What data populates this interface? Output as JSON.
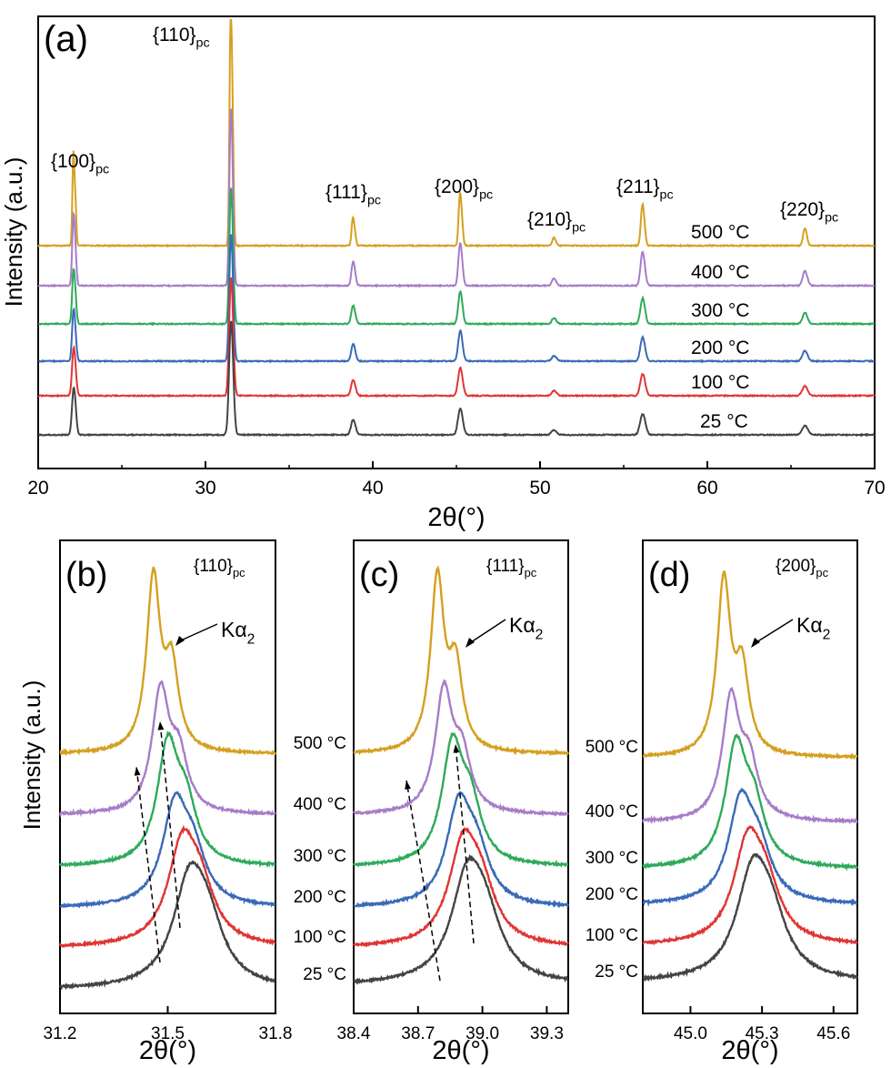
{
  "colors": {
    "500": "#d4a020",
    "400": "#a77cc8",
    "300": "#2faa5a",
    "200": "#3a6ab8",
    "100": "#e03535",
    "25": "#444444"
  },
  "chart_data": [
    {
      "panel": "a",
      "type": "line",
      "panel_label": "(a)",
      "xlabel": "2θ(°)",
      "ylabel": "Intensity (a.u.)",
      "xlim": [
        20,
        70
      ],
      "xticks": [
        20,
        30,
        40,
        50,
        60,
        70
      ],
      "series": [
        {
          "name": "500 °C",
          "key": "500"
        },
        {
          "name": "400 °C",
          "key": "400"
        },
        {
          "name": "300 °C",
          "key": "300"
        },
        {
          "name": "200 °C",
          "key": "200"
        },
        {
          "name": "100 °C",
          "key": "100"
        },
        {
          "name": "25 °C",
          "key": "25"
        }
      ],
      "peaks": [
        {
          "hkl": "{100}",
          "sub": "pc",
          "x": 22.1,
          "height": 0.4
        },
        {
          "hkl": "{110}",
          "sub": "pc",
          "x": 31.5,
          "height": 1.0
        },
        {
          "hkl": "{111}",
          "sub": "pc",
          "x": 38.8,
          "height": 0.11
        },
        {
          "hkl": "{200}",
          "sub": "pc",
          "x": 45.2,
          "height": 0.2
        },
        {
          "hkl": "{210}",
          "sub": "pc",
          "x": 50.8,
          "height": 0.03
        },
        {
          "hkl": "{211}",
          "sub": "pc",
          "x": 56.1,
          "height": 0.15
        },
        {
          "hkl": "{220}",
          "sub": "pc",
          "x": 65.8,
          "height": 0.06
        }
      ]
    },
    {
      "panel": "b",
      "type": "line",
      "panel_label": "(b)",
      "reflection": "{110}",
      "reflection_sub": "pc",
      "annotation": "Kα",
      "annotation_sub": "2",
      "xlabel": "2θ(°)",
      "ylabel": "Intensity (a.u.)",
      "xlim": [
        31.2,
        31.8
      ],
      "xticks": [
        31.2,
        31.5,
        31.8
      ],
      "xtick_labels": [
        "31.2",
        "31.5",
        "31.8"
      ],
      "peak_ka1": {
        "500": 31.46,
        "400": 31.48,
        "300": 31.5,
        "200": 31.52,
        "100": 31.54,
        "25": 31.56
      },
      "series": [
        {
          "name": "500 °C",
          "key": "500"
        },
        {
          "name": "400 °C",
          "key": "400"
        },
        {
          "name": "300 °C",
          "key": "300"
        },
        {
          "name": "200 °C",
          "key": "200"
        },
        {
          "name": "100 °C",
          "key": "100"
        },
        {
          "name": "25 °C",
          "key": "25"
        }
      ]
    },
    {
      "panel": "c",
      "type": "line",
      "panel_label": "(c)",
      "reflection": "{111}",
      "reflection_sub": "pc",
      "annotation": "Kα",
      "annotation_sub": "2",
      "xlabel": "2θ(°)",
      "xlim": [
        38.4,
        39.4
      ],
      "xticks": [
        38.4,
        38.7,
        39.0,
        39.3
      ],
      "xtick_labels": [
        "38.4",
        "38.7",
        "39.0",
        "39.3"
      ],
      "peak_ka1": {
        "500": 38.79,
        "400": 38.82,
        "300": 38.86,
        "200": 38.89,
        "100": 38.91,
        "25": 38.93
      },
      "series": [
        {
          "name": "500 °C",
          "key": "500"
        },
        {
          "name": "400 °C",
          "key": "400"
        },
        {
          "name": "300 °C",
          "key": "300"
        },
        {
          "name": "200 °C",
          "key": "200"
        },
        {
          "name": "100 °C",
          "key": "100"
        },
        {
          "name": "25 °C",
          "key": "25"
        }
      ]
    },
    {
      "panel": "d",
      "type": "line",
      "panel_label": "(d)",
      "reflection": "{200}",
      "reflection_sub": "pc",
      "annotation": "Kα",
      "annotation_sub": "2",
      "xlabel": "2θ(°)",
      "xlim": [
        44.8,
        45.7
      ],
      "xticks": [
        45.0,
        45.3,
        45.6
      ],
      "xtick_labels": [
        "45.0",
        "45.3",
        "45.6"
      ],
      "peak_ka1": {
        "500": 45.14,
        "400": 45.17,
        "300": 45.19,
        "200": 45.21,
        "100": 45.24,
        "25": 45.26
      },
      "series": [
        {
          "name": "500 °C",
          "key": "500"
        },
        {
          "name": "400 °C",
          "key": "400"
        },
        {
          "name": "300 °C",
          "key": "300"
        },
        {
          "name": "200 °C",
          "key": "200"
        },
        {
          "name": "100 °C",
          "key": "100"
        },
        {
          "name": "25 °C",
          "key": "25"
        }
      ]
    }
  ]
}
